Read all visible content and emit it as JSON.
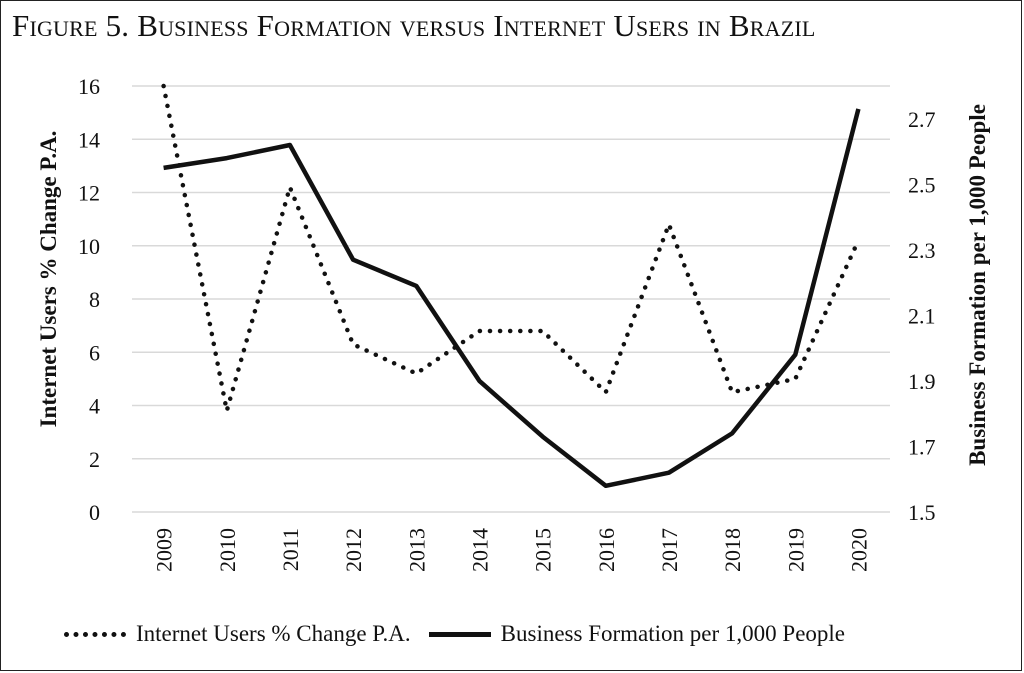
{
  "title": "Figure 5. Business Formation versus Internet Users in Brazil",
  "chart_data": {
    "type": "line",
    "title": "Figure 5. Business Formation versus Internet Users in Brazil",
    "categories": [
      "2009",
      "2010",
      "2011",
      "2012",
      "2013",
      "2014",
      "2015",
      "2016",
      "2017",
      "2018",
      "2019",
      "2020"
    ],
    "series": [
      {
        "name": "Internet Users % Change P.A.",
        "axis": "left",
        "style": "dotted",
        "values": [
          16.0,
          3.8,
          12.2,
          6.3,
          5.2,
          6.8,
          6.8,
          4.5,
          10.8,
          4.5,
          5.0,
          10.2
        ]
      },
      {
        "name": "Business Formation per 1,000 People",
        "axis": "right",
        "style": "solid",
        "values": [
          2.55,
          2.58,
          2.62,
          2.27,
          2.19,
          1.9,
          1.73,
          1.58,
          1.62,
          1.74,
          1.98,
          2.73
        ]
      }
    ],
    "ylabel_left": "Internet Users % Change P.A.",
    "ylabel_right": "Business Formation per 1,000 People",
    "ylim_left": [
      0,
      16
    ],
    "yticks_left": [
      "0",
      "2",
      "4",
      "6",
      "8",
      "10",
      "12",
      "14",
      "16"
    ],
    "ylim_right": [
      1.5,
      2.8
    ],
    "yticks_right": [
      "1.5",
      "1.7",
      "1.9",
      "2.1",
      "2.3",
      "2.5",
      "2.7"
    ],
    "grid": true,
    "legend": "bottom",
    "colors": {
      "line": "#111111",
      "grid": "#d9d9d9"
    }
  }
}
